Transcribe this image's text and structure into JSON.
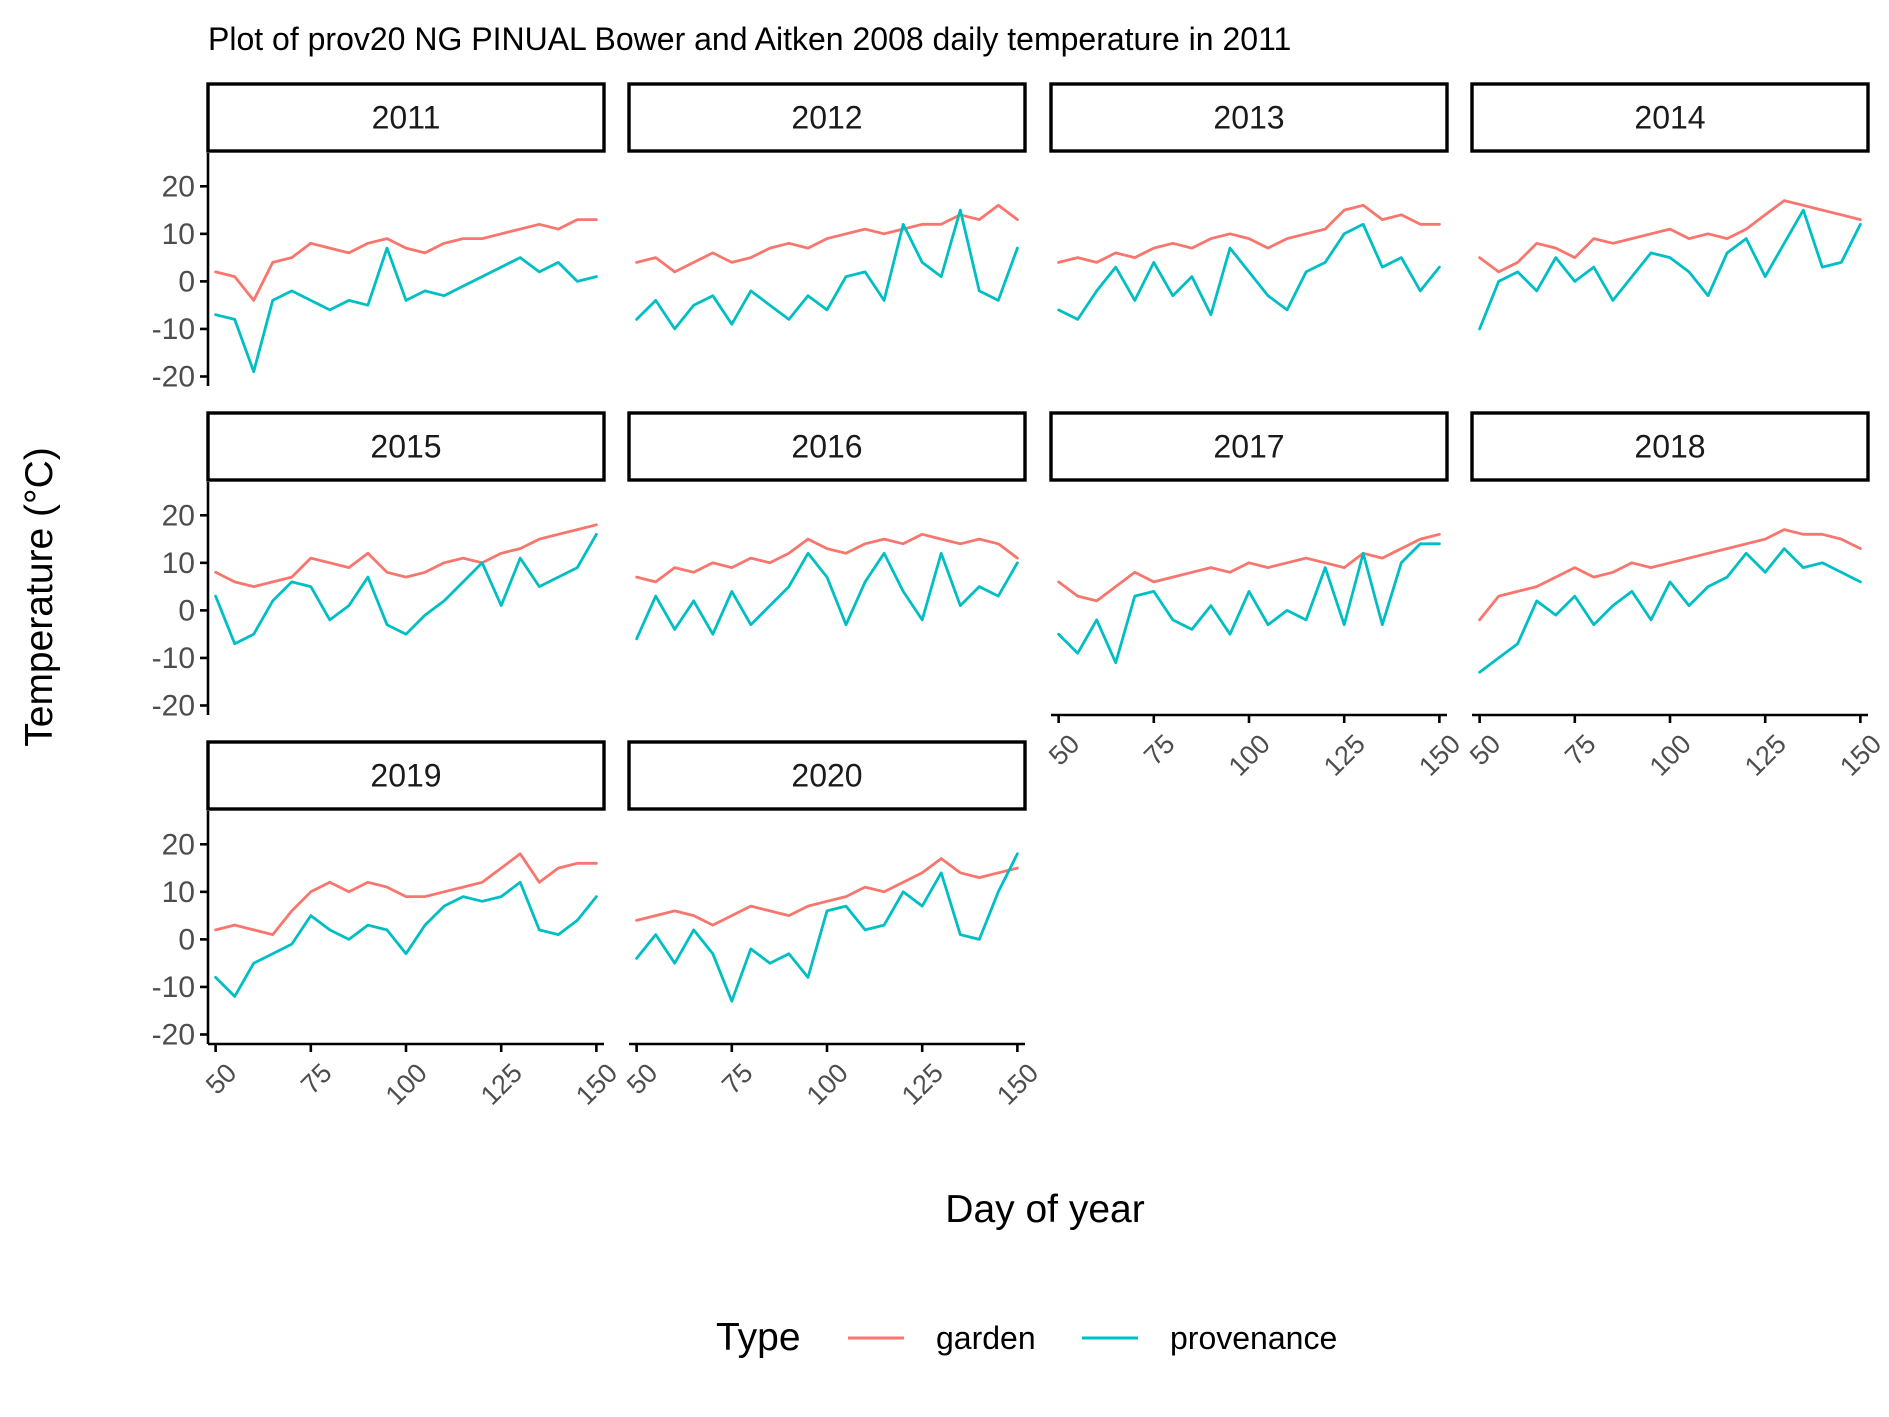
{
  "chart_data": {
    "type": "line",
    "title": "Plot of prov20 NG PINUAL Bower and Aitken 2008 daily temperature in 2011",
    "xlabel": "Day of year",
    "ylabel": "Temperature (°C)",
    "xlim": [
      48,
      152
    ],
    "ylim": [
      -22,
      27
    ],
    "x_ticks": [
      50,
      75,
      100,
      125,
      150
    ],
    "y_ticks": [
      -20,
      -10,
      0,
      10,
      20
    ],
    "grid": false,
    "legend": {
      "title": "Type",
      "position": "bottom",
      "entries": [
        {
          "name": "garden",
          "color": "#F8766D"
        },
        {
          "name": "provenance",
          "color": "#00BFC4"
        }
      ]
    },
    "x": [
      50,
      55,
      60,
      65,
      70,
      75,
      80,
      85,
      90,
      95,
      100,
      105,
      110,
      115,
      120,
      125,
      130,
      135,
      140,
      145,
      150
    ],
    "panels": [
      {
        "year": "2011",
        "series": [
          {
            "name": "garden",
            "values": [
              2,
              1,
              -4,
              4,
              5,
              8,
              7,
              6,
              8,
              9,
              7,
              6,
              8,
              9,
              9,
              10,
              11,
              12,
              11,
              13,
              13
            ]
          },
          {
            "name": "provenance",
            "values": [
              -7,
              -8,
              -19,
              -4,
              -2,
              -4,
              -6,
              -4,
              -5,
              7,
              -4,
              -2,
              -3,
              -1,
              1,
              3,
              5,
              2,
              4,
              0,
              1
            ]
          }
        ]
      },
      {
        "year": "2012",
        "series": [
          {
            "name": "garden",
            "values": [
              4,
              5,
              2,
              4,
              6,
              4,
              5,
              7,
              8,
              7,
              9,
              10,
              11,
              10,
              11,
              12,
              12,
              14,
              13,
              16,
              13
            ]
          },
          {
            "name": "provenance",
            "values": [
              -8,
              -4,
              -10,
              -5,
              -3,
              -9,
              -2,
              -5,
              -8,
              -3,
              -6,
              1,
              2,
              -4,
              12,
              4,
              1,
              15,
              -2,
              -4,
              7
            ]
          }
        ]
      },
      {
        "year": "2013",
        "series": [
          {
            "name": "garden",
            "values": [
              4,
              5,
              4,
              6,
              5,
              7,
              8,
              7,
              9,
              10,
              9,
              7,
              9,
              10,
              11,
              15,
              16,
              13,
              14,
              12,
              12
            ]
          },
          {
            "name": "provenance",
            "values": [
              -6,
              -8,
              -2,
              3,
              -4,
              4,
              -3,
              1,
              -7,
              7,
              2,
              -3,
              -6,
              2,
              4,
              10,
              12,
              3,
              5,
              -2,
              3
            ]
          }
        ]
      },
      {
        "year": "2014",
        "series": [
          {
            "name": "garden",
            "values": [
              5,
              2,
              4,
              8,
              7,
              5,
              9,
              8,
              9,
              10,
              11,
              9,
              10,
              9,
              11,
              14,
              17,
              16,
              15,
              14,
              13
            ]
          },
          {
            "name": "provenance",
            "values": [
              -10,
              0,
              2,
              -2,
              5,
              0,
              3,
              -4,
              1,
              6,
              5,
              2,
              -3,
              6,
              9,
              1,
              8,
              15,
              3,
              4,
              12
            ]
          }
        ]
      },
      {
        "year": "2015",
        "series": [
          {
            "name": "garden",
            "values": [
              8,
              6,
              5,
              6,
              7,
              11,
              10,
              9,
              12,
              8,
              7,
              8,
              10,
              11,
              10,
              12,
              13,
              15,
              16,
              17,
              18
            ]
          },
          {
            "name": "provenance",
            "values": [
              3,
              -7,
              -5,
              2,
              6,
              5,
              -2,
              1,
              7,
              -3,
              -5,
              -1,
              2,
              6,
              10,
              1,
              11,
              5,
              7,
              9,
              16
            ]
          }
        ]
      },
      {
        "year": "2016",
        "series": [
          {
            "name": "garden",
            "values": [
              7,
              6,
              9,
              8,
              10,
              9,
              11,
              10,
              12,
              15,
              13,
              12,
              14,
              15,
              14,
              16,
              15,
              14,
              15,
              14,
              11
            ]
          },
          {
            "name": "provenance",
            "values": [
              -6,
              3,
              -4,
              2,
              -5,
              4,
              -3,
              1,
              5,
              12,
              7,
              -3,
              6,
              12,
              4,
              -2,
              12,
              1,
              5,
              3,
              10
            ]
          }
        ]
      },
      {
        "year": "2017",
        "series": [
          {
            "name": "garden",
            "values": [
              6,
              3,
              2,
              5,
              8,
              6,
              7,
              8,
              9,
              8,
              10,
              9,
              10,
              11,
              10,
              9,
              12,
              11,
              13,
              15,
              16
            ]
          },
          {
            "name": "provenance",
            "values": [
              -5,
              -9,
              -2,
              -11,
              3,
              4,
              -2,
              -4,
              1,
              -5,
              4,
              -3,
              0,
              -2,
              9,
              -3,
              12,
              -3,
              10,
              14,
              14
            ]
          }
        ]
      },
      {
        "year": "2018",
        "series": [
          {
            "name": "garden",
            "values": [
              -2,
              3,
              4,
              5,
              7,
              9,
              7,
              8,
              10,
              9,
              10,
              11,
              12,
              13,
              14,
              15,
              17,
              16,
              16,
              15,
              13
            ]
          },
          {
            "name": "provenance",
            "values": [
              -13,
              -10,
              -7,
              2,
              -1,
              3,
              -3,
              1,
              4,
              -2,
              6,
              1,
              5,
              7,
              12,
              8,
              13,
              9,
              10,
              8,
              6
            ]
          }
        ]
      },
      {
        "year": "2019",
        "series": [
          {
            "name": "garden",
            "values": [
              2,
              3,
              2,
              1,
              6,
              10,
              12,
              10,
              12,
              11,
              9,
              9,
              10,
              11,
              12,
              15,
              18,
              12,
              15,
              16,
              16
            ]
          },
          {
            "name": "provenance",
            "values": [
              -8,
              -12,
              -5,
              -3,
              -1,
              5,
              2,
              0,
              3,
              2,
              -3,
              3,
              7,
              9,
              8,
              9,
              12,
              2,
              1,
              4,
              9
            ]
          }
        ]
      },
      {
        "year": "2020",
        "series": [
          {
            "name": "garden",
            "values": [
              4,
              5,
              6,
              5,
              3,
              5,
              7,
              6,
              5,
              7,
              8,
              9,
              11,
              10,
              12,
              14,
              17,
              14,
              13,
              14,
              15
            ]
          },
          {
            "name": "provenance",
            "values": [
              -4,
              1,
              -5,
              2,
              -3,
              -13,
              -2,
              -5,
              -3,
              -8,
              6,
              7,
              2,
              3,
              10,
              7,
              14,
              1,
              0,
              10,
              18
            ]
          }
        ]
      }
    ]
  }
}
